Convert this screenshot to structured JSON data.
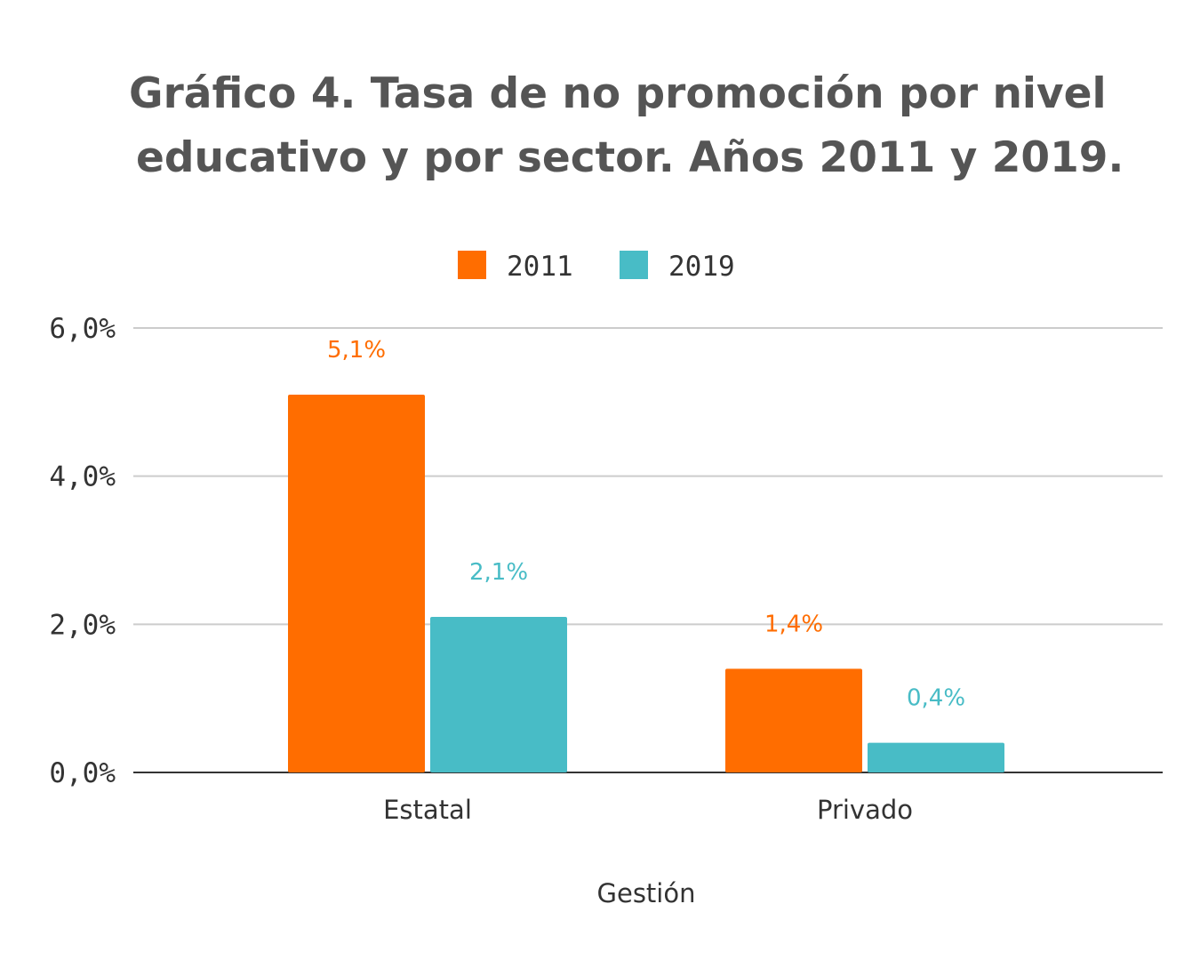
{
  "header": {
    "title_bold": "Gráfico 4",
    "title_line1_rest": ". Tasa de no promoción por nivel",
    "title_line2": "educativo y por sector. Años 2011 y 2019."
  },
  "chart_data": {
    "type": "bar",
    "categories": [
      "Estatal",
      "Privado"
    ],
    "series": [
      {
        "name": "2011",
        "color": "#ff6d00",
        "values": [
          5.1,
          1.4
        ],
        "labels": [
          "5,1%",
          "1,4%"
        ]
      },
      {
        "name": "2019",
        "color": "#48bcc6",
        "values": [
          2.1,
          0.4
        ],
        "labels": [
          "2,1%",
          "0,4%"
        ]
      }
    ],
    "xlabel": "Gestión",
    "ylabel": "",
    "ylim": [
      0,
      6
    ],
    "yticks": [
      0,
      2,
      4,
      6
    ],
    "ytick_labels": [
      "0,0%",
      "2,0%",
      "4,0%",
      "6,0%"
    ],
    "grid": true,
    "legend_position": "top-center"
  }
}
